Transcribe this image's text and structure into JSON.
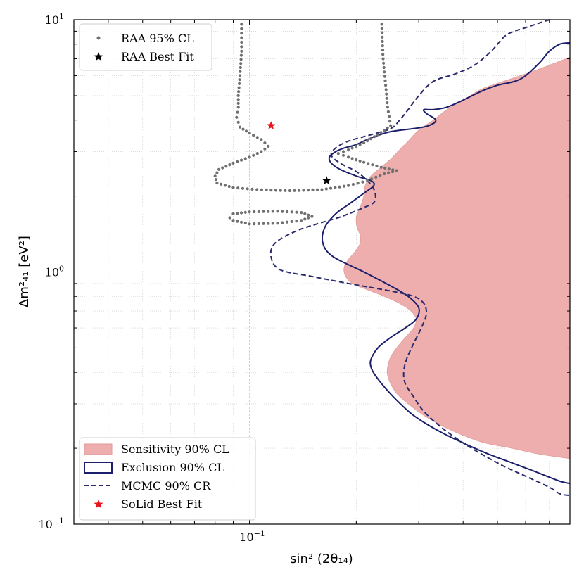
{
  "chart_data": {
    "type": "contour",
    "xscale": "log",
    "yscale": "log",
    "xlim": [
      0.032,
      0.8
    ],
    "ylim": [
      0.1,
      10
    ],
    "xlabel": "sin² (2θ₁₄)",
    "ylabel": "Δm²₄₁ [eV²]",
    "xticks": [
      {
        "value": 0.1,
        "base": "10",
        "exp": "−1"
      }
    ],
    "yticks": [
      {
        "value": 0.1,
        "base": "10",
        "exp": "−1"
      },
      {
        "value": 1,
        "base": "10",
        "exp": "0"
      },
      {
        "value": 10,
        "base": "10",
        "exp": "1"
      }
    ],
    "grid": true,
    "colors": {
      "sensitivity_fill": "#eeaeae",
      "sensitivity_edge": "#e29a9a",
      "exclusion": "#1b1f6b",
      "mcmc": "#2a2a6e",
      "raa": "#707070",
      "solid_best": "#e8141c",
      "raa_best": "#000000"
    },
    "legend_top": [
      {
        "key": "raa",
        "label": "RAA 95% CL"
      },
      {
        "key": "raa_best",
        "label": "RAA Best Fit"
      }
    ],
    "legend_bottom": [
      {
        "key": "sensitivity",
        "label": "Sensitivity 90% CL"
      },
      {
        "key": "exclusion",
        "label": "Exclusion 90% CL"
      },
      {
        "key": "mcmc",
        "label": "MCMC 90% CR"
      },
      {
        "key": "solid_best",
        "label": "SoLid Best Fit"
      }
    ],
    "series": {
      "sensitivity": {
        "name": "Sensitivity 90% CL",
        "points": [
          [
            0.8,
            7.1
          ],
          [
            0.7,
            6.6
          ],
          [
            0.6,
            6.1
          ],
          [
            0.52,
            5.7
          ],
          [
            0.45,
            5.3
          ],
          [
            0.4,
            4.8
          ],
          [
            0.36,
            4.4
          ],
          [
            0.33,
            4.0
          ],
          [
            0.3,
            3.65
          ],
          [
            0.28,
            3.3
          ],
          [
            0.265,
            3.05
          ],
          [
            0.25,
            2.8
          ],
          [
            0.235,
            2.6
          ],
          [
            0.22,
            2.4
          ],
          [
            0.212,
            2.2
          ],
          [
            0.21,
            2.0
          ],
          [
            0.205,
            1.8
          ],
          [
            0.2,
            1.65
          ],
          [
            0.201,
            1.5
          ],
          [
            0.205,
            1.4
          ],
          [
            0.205,
            1.3
          ],
          [
            0.198,
            1.2
          ],
          [
            0.19,
            1.12
          ],
          [
            0.185,
            1.05
          ],
          [
            0.186,
            0.97
          ],
          [
            0.195,
            0.9
          ],
          [
            0.215,
            0.85
          ],
          [
            0.24,
            0.8
          ],
          [
            0.265,
            0.75
          ],
          [
            0.285,
            0.7
          ],
          [
            0.295,
            0.65
          ],
          [
            0.29,
            0.6
          ],
          [
            0.275,
            0.55
          ],
          [
            0.26,
            0.5
          ],
          [
            0.25,
            0.46
          ],
          [
            0.245,
            0.42
          ],
          [
            0.245,
            0.39
          ],
          [
            0.25,
            0.36
          ],
          [
            0.26,
            0.33
          ],
          [
            0.28,
            0.3
          ],
          [
            0.31,
            0.27
          ],
          [
            0.35,
            0.245
          ],
          [
            0.4,
            0.225
          ],
          [
            0.46,
            0.21
          ],
          [
            0.55,
            0.2
          ],
          [
            0.65,
            0.19
          ],
          [
            0.8,
            0.182
          ]
        ]
      },
      "exclusion": {
        "name": "Exclusion 90% CL",
        "points": [
          [
            0.8,
            8.1
          ],
          [
            0.75,
            8.0
          ],
          [
            0.7,
            7.5
          ],
          [
            0.66,
            6.8
          ],
          [
            0.6,
            6.0
          ],
          [
            0.56,
            5.7
          ],
          [
            0.5,
            5.5
          ],
          [
            0.45,
            5.2
          ],
          [
            0.4,
            4.8
          ],
          [
            0.36,
            4.5
          ],
          [
            0.33,
            4.4
          ],
          [
            0.31,
            4.4
          ],
          [
            0.315,
            4.25
          ],
          [
            0.335,
            4.0
          ],
          [
            0.32,
            3.8
          ],
          [
            0.29,
            3.7
          ],
          [
            0.25,
            3.6
          ],
          [
            0.22,
            3.4
          ],
          [
            0.2,
            3.2
          ],
          [
            0.185,
            3.1
          ],
          [
            0.175,
            3.0
          ],
          [
            0.168,
            2.85
          ],
          [
            0.17,
            2.7
          ],
          [
            0.18,
            2.55
          ],
          [
            0.2,
            2.4
          ],
          [
            0.22,
            2.3
          ],
          [
            0.224,
            2.2
          ],
          [
            0.21,
            2.05
          ],
          [
            0.19,
            1.85
          ],
          [
            0.175,
            1.7
          ],
          [
            0.163,
            1.5
          ],
          [
            0.161,
            1.3
          ],
          [
            0.172,
            1.15
          ],
          [
            0.21,
            1.0
          ],
          [
            0.25,
            0.88
          ],
          [
            0.28,
            0.8
          ],
          [
            0.3,
            0.72
          ],
          [
            0.295,
            0.65
          ],
          [
            0.275,
            0.6
          ],
          [
            0.25,
            0.55
          ],
          [
            0.23,
            0.5
          ],
          [
            0.22,
            0.45
          ],
          [
            0.22,
            0.42
          ],
          [
            0.226,
            0.39
          ],
          [
            0.24,
            0.35
          ],
          [
            0.26,
            0.31
          ],
          [
            0.29,
            0.27
          ],
          [
            0.34,
            0.235
          ],
          [
            0.4,
            0.21
          ],
          [
            0.47,
            0.19
          ],
          [
            0.55,
            0.175
          ],
          [
            0.65,
            0.16
          ],
          [
            0.75,
            0.148
          ],
          [
            0.8,
            0.145
          ]
        ]
      },
      "mcmc": {
        "name": "MCMC 90% CR",
        "points": [
          [
            0.7,
            10
          ],
          [
            0.6,
            9.3
          ],
          [
            0.53,
            8.7
          ],
          [
            0.48,
            7.5
          ],
          [
            0.43,
            6.6
          ],
          [
            0.38,
            6.1
          ],
          [
            0.33,
            5.7
          ],
          [
            0.3,
            5.0
          ],
          [
            0.28,
            4.4
          ],
          [
            0.265,
            4.0
          ],
          [
            0.25,
            3.7
          ],
          [
            0.22,
            3.5
          ],
          [
            0.19,
            3.3
          ],
          [
            0.175,
            3.1
          ],
          [
            0.17,
            2.9
          ],
          [
            0.18,
            2.7
          ],
          [
            0.2,
            2.5
          ],
          [
            0.215,
            2.3
          ],
          [
            0.225,
            2.1
          ],
          [
            0.225,
            1.9
          ],
          [
            0.21,
            1.8
          ],
          [
            0.18,
            1.65
          ],
          [
            0.155,
            1.55
          ],
          [
            0.135,
            1.45
          ],
          [
            0.118,
            1.3
          ],
          [
            0.115,
            1.15
          ],
          [
            0.122,
            1.02
          ],
          [
            0.15,
            0.96
          ],
          [
            0.19,
            0.9
          ],
          [
            0.25,
            0.84
          ],
          [
            0.29,
            0.8
          ],
          [
            0.31,
            0.75
          ],
          [
            0.315,
            0.68
          ],
          [
            0.305,
            0.6
          ],
          [
            0.29,
            0.52
          ],
          [
            0.277,
            0.45
          ],
          [
            0.272,
            0.4
          ],
          [
            0.275,
            0.36
          ],
          [
            0.29,
            0.32
          ],
          [
            0.31,
            0.28
          ],
          [
            0.35,
            0.24
          ],
          [
            0.4,
            0.21
          ],
          [
            0.45,
            0.19
          ],
          [
            0.52,
            0.17
          ],
          [
            0.6,
            0.155
          ],
          [
            0.7,
            0.14
          ],
          [
            0.75,
            0.132
          ],
          [
            0.8,
            0.13
          ]
        ]
      },
      "raa": {
        "name": "RAA 95% CL",
        "segments": [
          [
            [
              0.095,
              9.6
            ],
            [
              0.095,
              7.5
            ],
            [
              0.094,
              6.0
            ],
            [
              0.093,
              5.0
            ],
            [
              0.093,
              4.5
            ],
            [
              0.092,
              4.1
            ],
            [
              0.094,
              3.75
            ],
            [
              0.1,
              3.55
            ],
            [
              0.108,
              3.35
            ],
            [
              0.113,
              3.15
            ],
            [
              0.108,
              3.0
            ],
            [
              0.1,
              2.85
            ],
            [
              0.09,
              2.7
            ],
            [
              0.082,
              2.55
            ],
            [
              0.08,
              2.4
            ],
            [
              0.081,
              2.25
            ],
            [
              0.09,
              2.16
            ],
            [
              0.105,
              2.12
            ],
            [
              0.13,
              2.1
            ],
            [
              0.16,
              2.12
            ],
            [
              0.19,
              2.2
            ],
            [
              0.215,
              2.3
            ],
            [
              0.24,
              2.45
            ],
            [
              0.26,
              2.52
            ]
          ],
          [
            [
              0.26,
              2.52
            ],
            [
              0.235,
              2.6
            ],
            [
              0.21,
              2.72
            ],
            [
              0.19,
              2.85
            ],
            [
              0.178,
              2.95
            ],
            [
              0.19,
              3.05
            ],
            [
              0.21,
              3.25
            ],
            [
              0.23,
              3.5
            ],
            [
              0.25,
              3.8
            ],
            [
              0.245,
              4.5
            ],
            [
              0.242,
              5.5
            ],
            [
              0.238,
              7.0
            ],
            [
              0.236,
              9.6
            ]
          ],
          [
            [
              0.09,
              1.6
            ],
            [
              0.1,
              1.55
            ],
            [
              0.12,
              1.56
            ],
            [
              0.14,
              1.6
            ],
            [
              0.15,
              1.66
            ],
            [
              0.14,
              1.72
            ],
            [
              0.12,
              1.74
            ],
            [
              0.1,
              1.73
            ],
            [
              0.09,
              1.7
            ],
            [
              0.088,
              1.64
            ],
            [
              0.09,
              1.6
            ]
          ]
        ]
      },
      "solid_best_fit": {
        "name": "SoLid Best Fit",
        "x": 0.115,
        "y": 3.8
      },
      "raa_best_fit": {
        "name": "RAA Best Fit",
        "x": 0.165,
        "y": 2.3
      }
    }
  }
}
